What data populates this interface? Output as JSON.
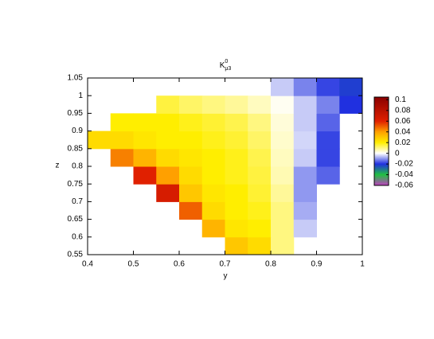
{
  "chart_data": {
    "type": "heatmap",
    "title": "K",
    "title_sup": "0",
    "title_sub": "μ3",
    "x_label": "y",
    "y_label": "z",
    "x_bins": [
      0.4,
      0.45,
      0.5,
      0.55,
      0.6,
      0.65,
      0.7,
      0.75,
      0.8,
      0.85,
      0.9,
      0.95,
      1.0
    ],
    "y_bins": [
      0.55,
      0.6,
      0.65,
      0.7,
      0.75,
      0.8,
      0.85,
      0.9,
      0.95,
      1.0,
      1.05
    ],
    "values": [
      [
        null,
        null,
        null,
        null,
        null,
        null,
        0.03,
        0.025,
        0.01,
        null,
        null,
        null
      ],
      [
        null,
        null,
        null,
        null,
        null,
        0.035,
        0.022,
        0.02,
        0.01,
        -0.005,
        null,
        null
      ],
      [
        null,
        null,
        null,
        null,
        0.05,
        0.025,
        0.02,
        0.018,
        0.01,
        -0.008,
        null,
        null
      ],
      [
        null,
        null,
        null,
        0.065,
        0.03,
        0.022,
        0.02,
        0.016,
        0.008,
        -0.01,
        null,
        null
      ],
      [
        null,
        null,
        0.06,
        0.04,
        0.025,
        0.02,
        0.018,
        0.015,
        0.006,
        -0.01,
        -0.015,
        null
      ],
      [
        null,
        0.045,
        0.035,
        0.025,
        0.022,
        0.02,
        0.018,
        0.014,
        0.005,
        -0.005,
        -0.018,
        null
      ],
      [
        0.025,
        0.025,
        0.022,
        0.02,
        0.02,
        0.018,
        0.016,
        0.012,
        0.004,
        -0.004,
        -0.018,
        null
      ],
      [
        null,
        0.02,
        0.02,
        0.02,
        0.018,
        0.016,
        0.014,
        0.01,
        0.003,
        -0.005,
        -0.015,
        null
      ],
      [
        null,
        null,
        null,
        0.015,
        0.012,
        0.01,
        0.008,
        0.005,
        0.001,
        -0.005,
        -0.012,
        -0.02
      ],
      [
        null,
        null,
        null,
        null,
        null,
        null,
        null,
        null,
        -0.005,
        -0.012,
        -0.018,
        -0.022
      ]
    ],
    "xlim": [
      0.4,
      1
    ],
    "xticks": [
      0.4,
      0.5,
      0.6,
      0.7,
      0.8,
      0.9,
      1
    ],
    "ylim": [
      0.55,
      1.05
    ],
    "yticks": [
      0.55,
      0.6,
      0.65,
      0.7,
      0.75,
      0.8,
      0.85,
      0.9,
      0.95,
      1,
      1.05
    ],
    "cblim": [
      -0.06,
      0.105
    ],
    "cbticks": [
      0.1,
      0.08,
      0.06,
      0.04,
      0.02,
      0,
      -0.02,
      -0.04,
      -0.06
    ],
    "palette": [
      {
        "value": -0.06,
        "color": "#c040c0"
      },
      {
        "value": -0.04,
        "color": "#20c040"
      },
      {
        "value": -0.02,
        "color": "#2030e0"
      },
      {
        "value": 0,
        "color": "#ffffff"
      },
      {
        "value": 0.02,
        "color": "#ffee00"
      },
      {
        "value": 0.04,
        "color": "#ffa000"
      },
      {
        "value": 0.06,
        "color": "#e02000"
      },
      {
        "value": 0.105,
        "color": "#8a0000"
      }
    ]
  }
}
